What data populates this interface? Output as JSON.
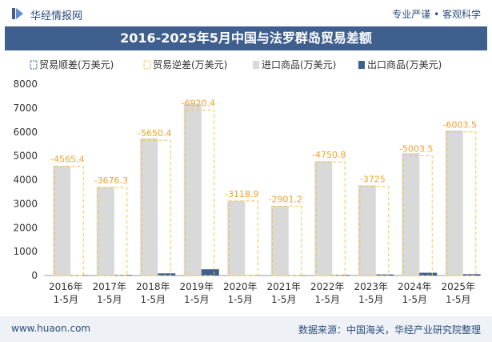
{
  "header": {
    "brand": "华经情报网",
    "tagline": "专业严谨 • 客观科学"
  },
  "title": "2016-2025年5月中国与法罗群岛贸易差额",
  "footer": {
    "website": "www.huaon.com",
    "source": "数据来源：中国海关，华经产业研究院整理"
  },
  "colors": {
    "title_bg": "#3f5f8f",
    "import": "#d9d9d9",
    "export": "#3f5f8f",
    "deficit": "#f5c242",
    "label": "#f0a030"
  },
  "chart_data": {
    "type": "bar",
    "categories": [
      [
        "2016年",
        "1-5月"
      ],
      [
        "2017年",
        "1-5月"
      ],
      [
        "2018年",
        "1-5月"
      ],
      [
        "2019年",
        "1-5月"
      ],
      [
        "2020年",
        "1-5月"
      ],
      [
        "2021年",
        "1-5月"
      ],
      [
        "2022年",
        "1-5月"
      ],
      [
        "2023年",
        "1-5月"
      ],
      [
        "2024年",
        "1-5月"
      ],
      [
        "2025年",
        "1-5月"
      ]
    ],
    "legend": [
      "贸易顺差(万美元)",
      "贸易逆差(万美元)",
      "进口商品(万美元)",
      "出口商品(万美元)"
    ],
    "series": [
      {
        "name": "贸易顺差(万美元)",
        "values": [
          null,
          null,
          null,
          null,
          null,
          null,
          null,
          null,
          null,
          null
        ]
      },
      {
        "name": "贸易逆差(万美元)",
        "values": [
          -4565.4,
          -3676.3,
          -5650.4,
          -6920.4,
          -3118.9,
          -2901.2,
          -4750.8,
          -3725,
          -5003.5,
          -6003.5
        ]
      },
      {
        "name": "进口商品(万美元)",
        "values": [
          4580,
          3700,
          5740,
          7180,
          3125,
          2910,
          4775,
          3770,
          5120,
          6060
        ]
      },
      {
        "name": "出口商品(万美元)",
        "values": [
          15,
          24,
          90,
          260,
          6,
          9,
          24,
          45,
          116,
          56
        ]
      }
    ],
    "data_labels": [
      "-4565.4",
      "-3676.3",
      "-5650.4",
      "-6920.4",
      "-3118.9",
      "-2901.2",
      "-4750.8",
      "-3725",
      "-5003.5",
      "-6003.5"
    ],
    "ylim": [
      0,
      8000
    ],
    "yticks": [
      0,
      1000,
      2000,
      3000,
      4000,
      5000,
      6000,
      7000,
      8000
    ],
    "grid": false,
    "legend_position": "top"
  }
}
